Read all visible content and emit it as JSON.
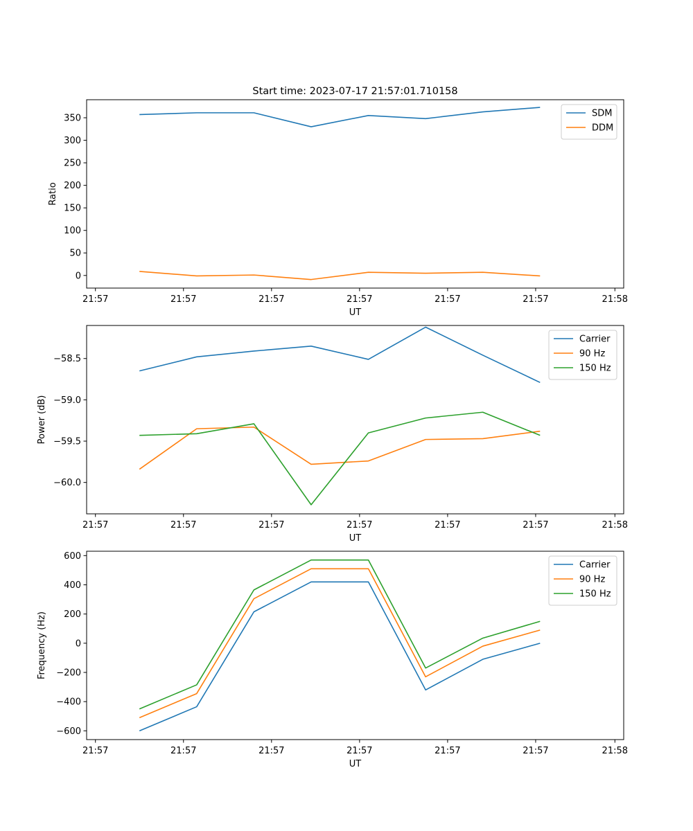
{
  "figure_title": "Start time: 2023-07-17 21:57:01.710158",
  "colors": {
    "blue": "#1f77b4",
    "orange": "#ff7f0e",
    "green": "#2ca02c"
  },
  "chart_data": [
    {
      "type": "line",
      "title": "Start time: 2023-07-17 21:57:01.710158",
      "xlabel": "UT",
      "ylabel": "Ratio",
      "xlim": [
        0,
        6.1
      ],
      "ylim": [
        -28,
        390
      ],
      "x_ticks": [
        {
          "x": 0.1,
          "label": "21:57"
        },
        {
          "x": 1.1,
          "label": "21:57"
        },
        {
          "x": 2.1,
          "label": "21:57"
        },
        {
          "x": 3.1,
          "label": "21:57"
        },
        {
          "x": 4.1,
          "label": "21:57"
        },
        {
          "x": 5.1,
          "label": "21:57"
        },
        {
          "x": 6.0,
          "label": "21:58"
        }
      ],
      "y_ticks": [
        {
          "v": 0,
          "label": "0"
        },
        {
          "v": 50,
          "label": "50"
        },
        {
          "v": 100,
          "label": "100"
        },
        {
          "v": 150,
          "label": "150"
        },
        {
          "v": 200,
          "label": "200"
        },
        {
          "v": 250,
          "label": "250"
        },
        {
          "v": 300,
          "label": "300"
        },
        {
          "v": 350,
          "label": "350"
        }
      ],
      "legend_loc": "upper right",
      "x": [
        0.6,
        1.25,
        1.9,
        2.55,
        3.2,
        3.85,
        4.5,
        5.15
      ],
      "series": [
        {
          "name": "SDM",
          "color": "#1f77b4",
          "values": [
            357,
            361,
            361,
            330,
            355,
            348,
            363,
            373
          ]
        },
        {
          "name": "DDM",
          "color": "#ff7f0e",
          "values": [
            9,
            -1,
            1,
            -9,
            7,
            5,
            7,
            -1
          ]
        }
      ]
    },
    {
      "type": "line",
      "title": "",
      "xlabel": "UT",
      "ylabel": "Power (dB)",
      "xlim": [
        0,
        6.1
      ],
      "ylim": [
        -60.38,
        -58.1
      ],
      "x_ticks": [
        {
          "x": 0.1,
          "label": "21:57"
        },
        {
          "x": 1.1,
          "label": "21:57"
        },
        {
          "x": 2.1,
          "label": "21:57"
        },
        {
          "x": 3.1,
          "label": "21:57"
        },
        {
          "x": 4.1,
          "label": "21:57"
        },
        {
          "x": 5.1,
          "label": "21:57"
        },
        {
          "x": 6.0,
          "label": "21:58"
        }
      ],
      "y_ticks": [
        {
          "v": -60.0,
          "label": "−60.0"
        },
        {
          "v": -59.5,
          "label": "−59.5"
        },
        {
          "v": -59.0,
          "label": "−59.0"
        },
        {
          "v": -58.5,
          "label": "−58.5"
        }
      ],
      "legend_loc": "upper right",
      "x": [
        0.6,
        1.25,
        1.9,
        2.55,
        3.2,
        3.85,
        4.5,
        5.15
      ],
      "series": [
        {
          "name": "Carrier",
          "color": "#1f77b4",
          "values": [
            -58.65,
            -58.48,
            -58.41,
            -58.35,
            -58.51,
            -58.12,
            -58.46,
            -58.79
          ]
        },
        {
          "name": "90 Hz",
          "color": "#ff7f0e",
          "values": [
            -59.84,
            -59.35,
            -59.33,
            -59.78,
            -59.74,
            -59.48,
            -59.47,
            -59.38
          ]
        },
        {
          "name": "150 Hz",
          "color": "#2ca02c",
          "values": [
            -59.43,
            -59.41,
            -59.29,
            -60.27,
            -59.4,
            -59.22,
            -59.15,
            -59.43
          ]
        }
      ]
    },
    {
      "type": "line",
      "title": "",
      "xlabel": "UT",
      "ylabel": "Frequency (Hz)",
      "xlim": [
        0,
        6.1
      ],
      "ylim": [
        -660,
        630
      ],
      "x_ticks": [
        {
          "x": 0.1,
          "label": "21:57"
        },
        {
          "x": 1.1,
          "label": "21:57"
        },
        {
          "x": 2.1,
          "label": "21:57"
        },
        {
          "x": 3.1,
          "label": "21:57"
        },
        {
          "x": 4.1,
          "label": "21:57"
        },
        {
          "x": 5.1,
          "label": "21:57"
        },
        {
          "x": 6.0,
          "label": "21:58"
        }
      ],
      "y_ticks": [
        {
          "v": -600,
          "label": "−600"
        },
        {
          "v": -400,
          "label": "−400"
        },
        {
          "v": -200,
          "label": "−200"
        },
        {
          "v": 0,
          "label": "0"
        },
        {
          "v": 200,
          "label": "200"
        },
        {
          "v": 400,
          "label": "400"
        },
        {
          "v": 600,
          "label": "600"
        }
      ],
      "legend_loc": "upper right",
      "x": [
        0.6,
        1.25,
        1.9,
        2.55,
        3.2,
        3.85,
        4.5,
        5.15
      ],
      "series": [
        {
          "name": "Carrier",
          "color": "#1f77b4",
          "values": [
            -600,
            -435,
            215,
            420,
            420,
            -320,
            -110,
            0
          ]
        },
        {
          "name": "90 Hz",
          "color": "#ff7f0e",
          "values": [
            -510,
            -345,
            305,
            510,
            510,
            -230,
            -20,
            90
          ]
        },
        {
          "name": "150 Hz",
          "color": "#2ca02c",
          "values": [
            -450,
            -285,
            365,
            570,
            570,
            -170,
            35,
            150
          ]
        }
      ]
    }
  ]
}
